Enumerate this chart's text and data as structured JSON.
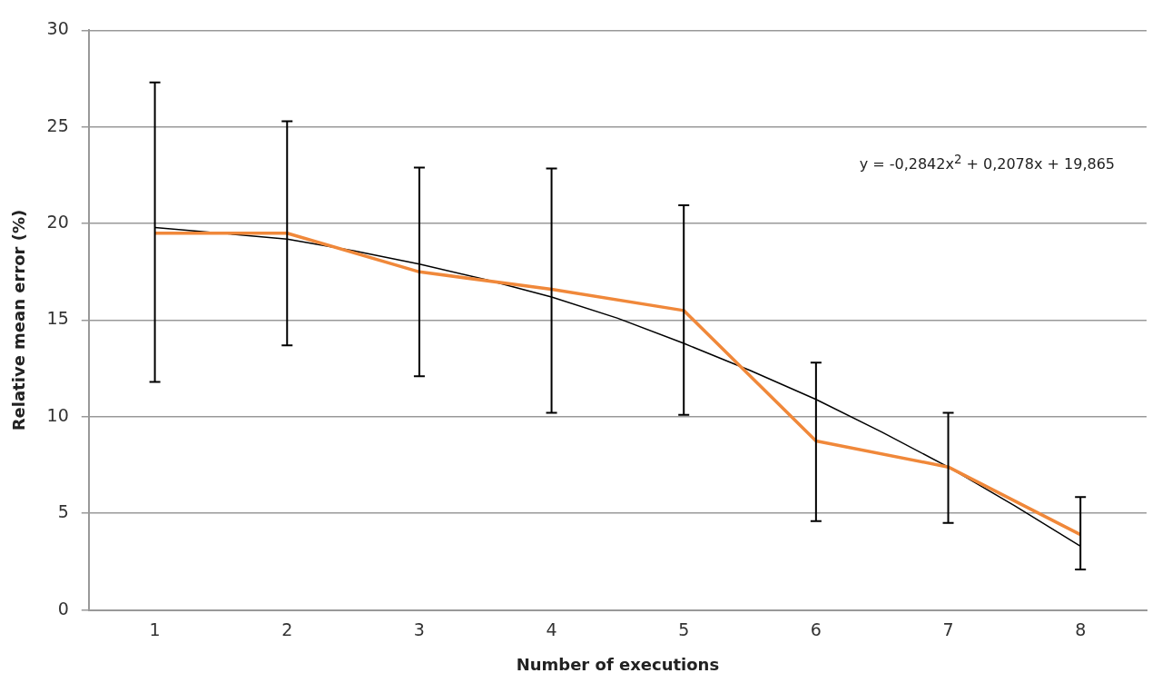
{
  "chart_data": {
    "type": "line",
    "xlabel": "Number of executions",
    "ylabel": "Relative mean error (%)",
    "x": [
      1,
      2,
      3,
      4,
      5,
      6,
      7,
      8
    ],
    "series": [
      {
        "color": "#f0883a",
        "values": [
          19.5,
          19.5,
          17.5,
          16.6,
          15.5,
          8.75,
          7.4,
          3.9
        ],
        "errors": [
          [
            11.8,
            27.3
          ],
          [
            13.7,
            25.3
          ],
          [
            12.1,
            22.9
          ],
          [
            10.2,
            22.85
          ],
          [
            10.1,
            20.95
          ],
          [
            4.6,
            12.8
          ],
          [
            4.5,
            10.2
          ],
          [
            2.1,
            5.85
          ]
        ]
      },
      {
        "type": "line",
        "color": "#000000",
        "x": [
          1,
          2,
          2.5,
          3,
          3.5,
          4,
          4.5,
          5,
          5.5,
          6,
          6.5,
          7,
          7.5,
          8
        ],
        "values": [
          19.8,
          19.2,
          18.6,
          17.9,
          17.1,
          16.2,
          15.1,
          13.8,
          12.4,
          10.9,
          9.2,
          7.4,
          5.4,
          3.3
        ]
      }
    ],
    "xlim": [
      0.5,
      8.5
    ],
    "xticks": [
      1,
      2,
      3,
      4,
      5,
      6,
      7,
      8
    ],
    "ylim": [
      0,
      30
    ],
    "yticks": [
      0,
      5,
      10,
      15,
      20,
      25,
      30
    ],
    "grid": "y",
    "legend": false,
    "marker": "none",
    "line_style": "solid",
    "annotations": [
      "y = -0,2842x$^{2}$ + 0,2078x + 19,865"
    ]
  }
}
